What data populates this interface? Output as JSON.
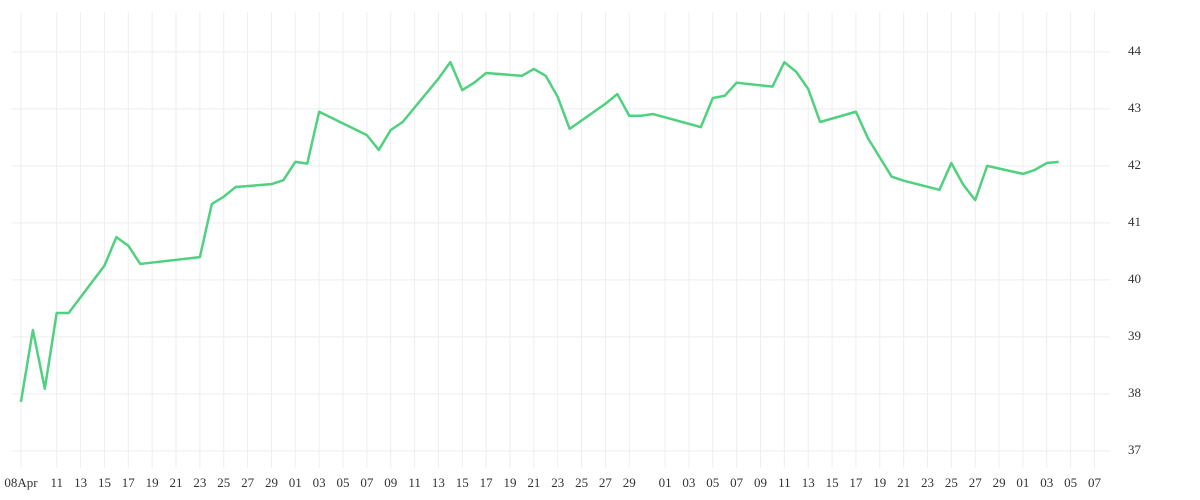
{
  "chart_data": {
    "type": "line",
    "x": [
      0,
      1,
      2,
      3,
      4,
      7,
      8,
      9,
      10,
      15,
      16,
      17,
      18,
      21,
      22,
      23,
      24,
      25,
      29,
      30,
      31,
      32,
      35,
      36,
      37,
      38,
      39,
      42,
      43,
      44,
      45,
      46,
      49,
      50,
      51,
      52,
      53,
      57,
      58,
      59,
      60,
      63,
      64,
      65,
      66,
      67,
      70,
      71,
      73,
      74,
      77,
      78,
      79,
      80,
      81,
      84,
      85,
      86,
      87
    ],
    "series": [
      {
        "color": "#4fd17f",
        "values": [
          37.86,
          39.12,
          38.09,
          39.42,
          39.42,
          40.25,
          40.75,
          40.6,
          40.28,
          40.4,
          41.33,
          41.46,
          41.63,
          41.68,
          41.75,
          42.07,
          42.04,
          42.95,
          42.54,
          42.28,
          42.63,
          42.77,
          43.53,
          43.82,
          43.33,
          43.46,
          43.63,
          43.58,
          43.7,
          43.58,
          43.21,
          42.65,
          43.09,
          43.26,
          42.88,
          42.88,
          42.91,
          42.68,
          43.19,
          43.23,
          43.46,
          43.39,
          43.82,
          43.65,
          43.35,
          42.77,
          42.95,
          42.49,
          41.81,
          41.74,
          41.58,
          42.05,
          41.67,
          41.4,
          42.0,
          41.86,
          41.93,
          42.05,
          42.07
        ]
      }
    ],
    "xlim": [
      -0.75,
      91.3
    ],
    "xticks": [
      {
        "value": 0,
        "label": "08Apr"
      },
      {
        "value": 3,
        "label": "11"
      },
      {
        "value": 5,
        "label": "13"
      },
      {
        "value": 7,
        "label": "15"
      },
      {
        "value": 9,
        "label": "17"
      },
      {
        "value": 11,
        "label": "19"
      },
      {
        "value": 13,
        "label": "21"
      },
      {
        "value": 15,
        "label": "23"
      },
      {
        "value": 17,
        "label": "25"
      },
      {
        "value": 19,
        "label": "27"
      },
      {
        "value": 21,
        "label": "29"
      },
      {
        "value": 23,
        "label": "01"
      },
      {
        "value": 25,
        "label": "03"
      },
      {
        "value": 27,
        "label": "05"
      },
      {
        "value": 29,
        "label": "07"
      },
      {
        "value": 31,
        "label": "09"
      },
      {
        "value": 33,
        "label": "11"
      },
      {
        "value": 35,
        "label": "13"
      },
      {
        "value": 37,
        "label": "15"
      },
      {
        "value": 39,
        "label": "17"
      },
      {
        "value": 41,
        "label": "19"
      },
      {
        "value": 43,
        "label": "21"
      },
      {
        "value": 45,
        "label": "23"
      },
      {
        "value": 47,
        "label": "25"
      },
      {
        "value": 49,
        "label": "27"
      },
      {
        "value": 51,
        "label": "29"
      },
      {
        "value": 54,
        "label": "01"
      },
      {
        "value": 56,
        "label": "03"
      },
      {
        "value": 58,
        "label": "05"
      },
      {
        "value": 60,
        "label": "07"
      },
      {
        "value": 62,
        "label": "09"
      },
      {
        "value": 64,
        "label": "11"
      },
      {
        "value": 66,
        "label": "13"
      },
      {
        "value": 68,
        "label": "15"
      },
      {
        "value": 70,
        "label": "17"
      },
      {
        "value": 72,
        "label": "19"
      },
      {
        "value": 74,
        "label": "21"
      },
      {
        "value": 76,
        "label": "23"
      },
      {
        "value": 78,
        "label": "25"
      },
      {
        "value": 80,
        "label": "27"
      },
      {
        "value": 82,
        "label": "29"
      },
      {
        "value": 84,
        "label": "01"
      },
      {
        "value": 86,
        "label": "03"
      },
      {
        "value": 88,
        "label": "05"
      },
      {
        "value": 90,
        "label": "07"
      }
    ],
    "ylim": [
      36.7,
      44.7
    ],
    "yticks": [
      37,
      38,
      39,
      40,
      41,
      42,
      43,
      44
    ],
    "grid": true
  }
}
